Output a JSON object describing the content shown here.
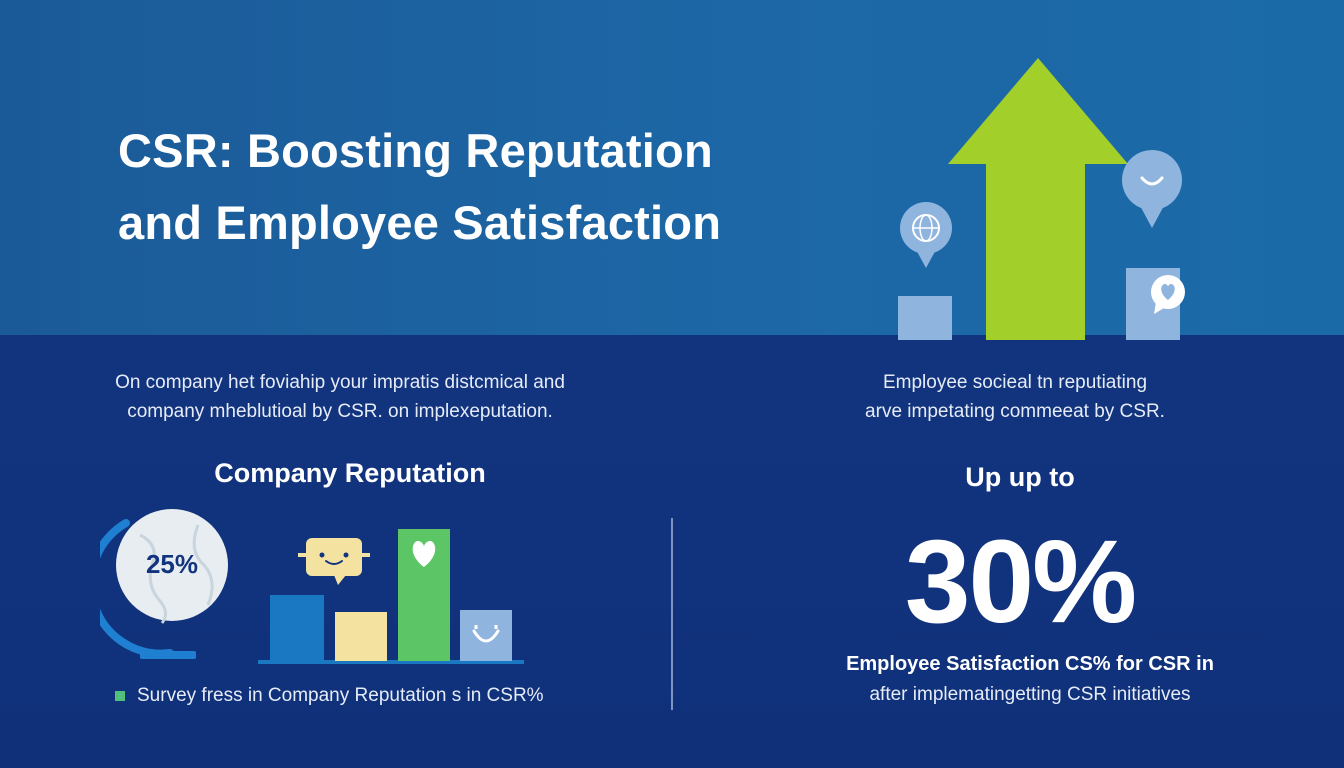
{
  "header": {
    "title_line1": "CSR: Boosting Reputation",
    "title_line2": "and Employee Satisfaction"
  },
  "left": {
    "description_line1": "On company het foviahip your impratis distcmical and",
    "description_line2": "company mheblutioal by CSR. on implexeputation.",
    "heading": "Company Reputation",
    "globe_label": "25%",
    "legend_text": "Survey fress in Company Reputation s in CSR%"
  },
  "right": {
    "description_line1": "Employee socieal tn reputiating",
    "description_line2": "arve impetating commeeat by CSR.",
    "heading": "Up up to",
    "stat_value": "30%",
    "stat_line1": "Employee Satisfaction CS% for CSR in",
    "stat_line2": "after implematingetting CSR initiatives"
  },
  "colors": {
    "top_band": "#1d67a6",
    "bottom_band": "#10307a",
    "arrow_green": "#a3cf2a",
    "bar_blue": "#1a78c2",
    "bar_yellow": "#f4e3a0",
    "bar_green": "#5cc667",
    "bar_lightblue": "#8fb4de",
    "pale_square": "#8fb4de"
  },
  "icons": [
    "globe-pin-icon",
    "smile-pin-icon",
    "heart-bubble-icon",
    "up-arrow-icon",
    "globe-icon",
    "smile-chat-icon",
    "heart-icon",
    "smile-icon"
  ]
}
